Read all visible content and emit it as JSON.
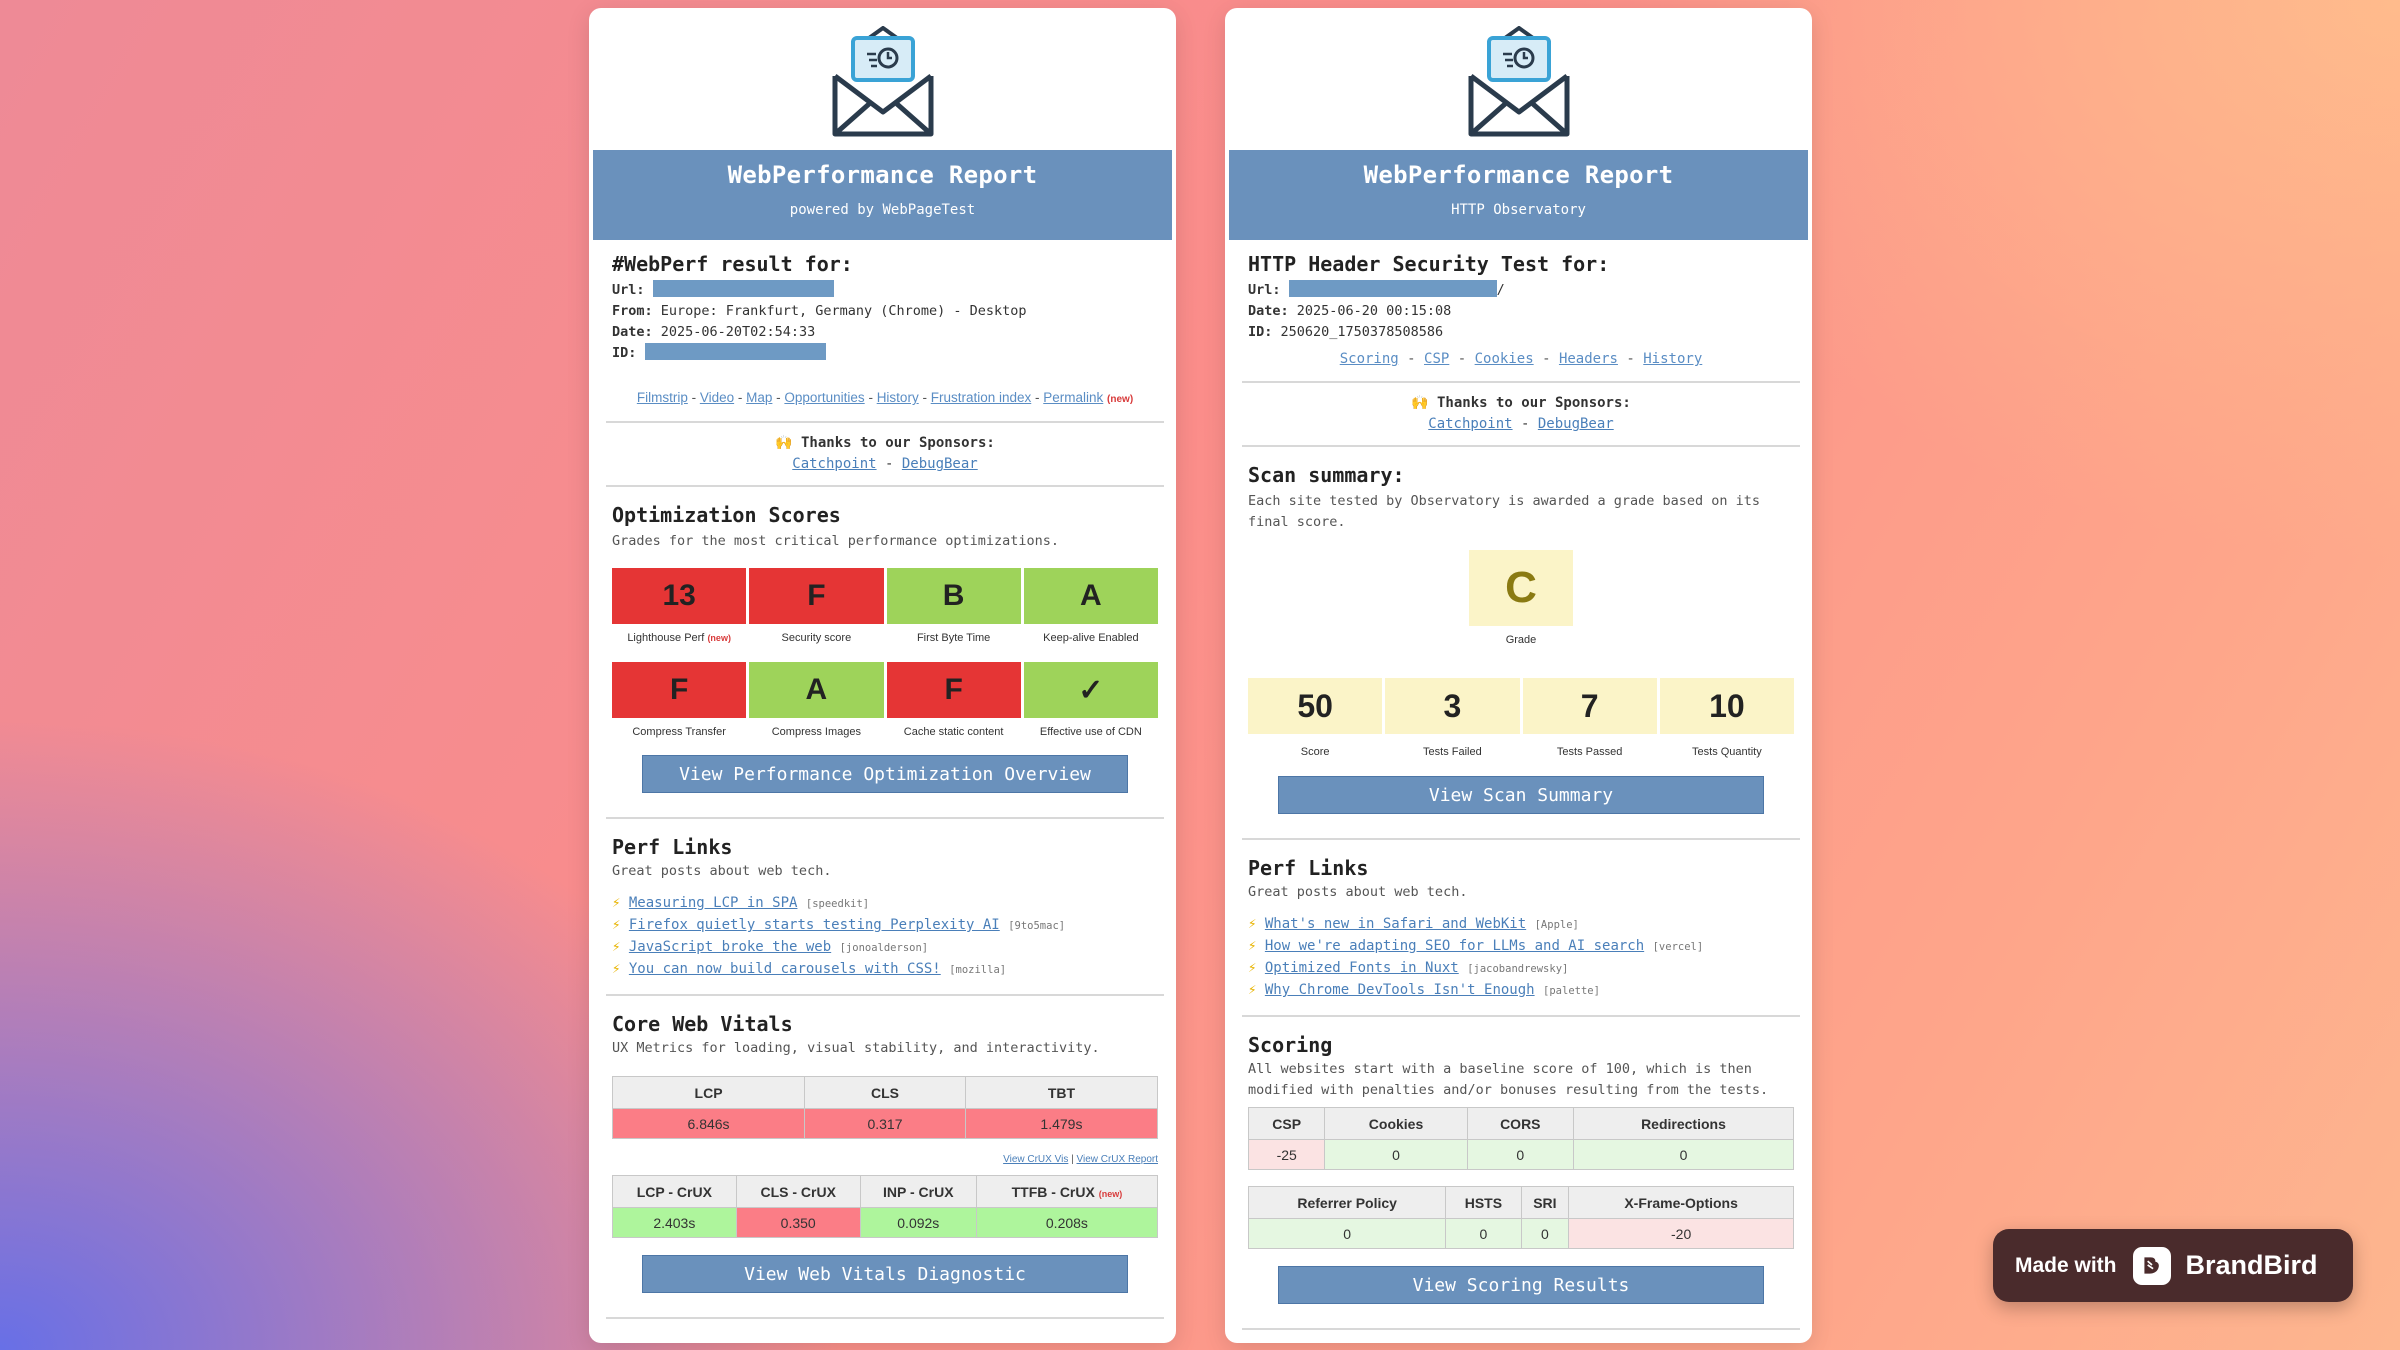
{
  "left": {
    "banner": {
      "title": "WebPerformance Report",
      "subtitle": "powered by WebPageTest"
    },
    "result": {
      "heading": "#WebPerf result for:",
      "url_label": "Url:",
      "from_label": "From:",
      "from_value": "Europe: Frankfurt, Germany (Chrome) - Desktop",
      "date_label": "Date:",
      "date_value": "2025-06-20T02:54:33",
      "id_label": "ID:"
    },
    "nav": {
      "links": [
        "Filmstrip",
        "Video",
        "Map",
        "Opportunities",
        "History",
        "Frustration index",
        "Permalink"
      ],
      "new_tag": "(new)"
    },
    "sponsors": {
      "label": "🙌 Thanks to our Sponsors:",
      "a": "Catchpoint",
      "b": "DebugBear"
    },
    "optimization": {
      "title": "Optimization Scores",
      "desc": "Grades for the most critical performance optimizations.",
      "row1": [
        {
          "value": "13",
          "label": "Lighthouse Perf",
          "color": "#e53535"
        },
        {
          "value": "F",
          "label": "Security score",
          "color": "#e53535"
        },
        {
          "value": "B",
          "label": "First Byte Time",
          "color": "#9ed35a"
        },
        {
          "value": "A",
          "label": "Keep-alive Enabled",
          "color": "#9ed35a"
        }
      ],
      "row1_new": "(new)",
      "row2": [
        {
          "value": "F",
          "label": "Compress Transfer",
          "color": "#e53535"
        },
        {
          "value": "A",
          "label": "Compress Images",
          "color": "#9ed35a"
        },
        {
          "value": "F",
          "label": "Cache static content",
          "color": "#e53535"
        },
        {
          "value": "✓",
          "label": "Effective use of CDN",
          "color": "#9ed35a"
        }
      ],
      "button": "View Performance Optimization Overview"
    },
    "perf_links": {
      "title": "Perf Links",
      "desc": "Great posts about web tech.",
      "items": [
        {
          "text": "Measuring LCP in SPA",
          "src": "[speedkit]"
        },
        {
          "text": "Firefox quietly starts testing Perplexity AI",
          "src": "[9to5mac]"
        },
        {
          "text": "JavaScript broke the web",
          "src": "[jonoalderson]"
        },
        {
          "text": "You can now build carousels with CSS!",
          "src": "[mozilla]"
        }
      ]
    },
    "cwv": {
      "title": "Core Web Vitals",
      "desc": "UX Metrics for loading, visual stability, and interactivity.",
      "headers": [
        "LCP",
        "CLS",
        "TBT"
      ],
      "values": [
        "6.846s",
        "0.317",
        "1.479s"
      ],
      "crux_links": [
        "View CrUX Vis",
        "View CrUX Report"
      ],
      "crux_headers": [
        "LCP - CrUX",
        "CLS - CrUX",
        "INP - CrUX",
        "TTFB - CrUX"
      ],
      "crux_new": "(new)",
      "crux_values": [
        "2.403s",
        "0.350",
        "0.092s",
        "0.208s"
      ],
      "button": "View Web Vitals Diagnostic"
    }
  },
  "right": {
    "banner": {
      "title": "WebPerformance Report",
      "subtitle": "HTTP Observatory"
    },
    "result": {
      "heading": "HTTP Header Security Test for:",
      "url_label": "Url:",
      "url_tail": "/",
      "date_label": "Date:",
      "date_value": "2025-06-20 00:15:08",
      "id_label": "ID:",
      "id_value": "250620_1750378508586"
    },
    "nav": {
      "links": [
        "Scoring",
        "CSP",
        "Cookies",
        "Headers",
        "History"
      ]
    },
    "sponsors": {
      "label": "🙌 Thanks to our Sponsors:",
      "a": "Catchpoint",
      "b": "DebugBear"
    },
    "scan": {
      "title": "Scan summary:",
      "desc": "Each site tested by Observatory is awarded a grade based on its final score.",
      "grade": "C",
      "grade_label": "Grade",
      "stats": [
        {
          "value": "50",
          "label": "Score"
        },
        {
          "value": "3",
          "label": "Tests Failed"
        },
        {
          "value": "7",
          "label": "Tests Passed"
        },
        {
          "value": "10",
          "label": "Tests Quantity"
        }
      ],
      "button": "View Scan Summary"
    },
    "perf_links": {
      "title": "Perf Links",
      "desc": "Great posts about web tech.",
      "items": [
        {
          "text": "What's new in Safari and WebKit",
          "src": "[Apple]"
        },
        {
          "text": "How we're adapting SEO for LLMs and AI search",
          "src": "[vercel]"
        },
        {
          "text": "Optimized Fonts in Nuxt",
          "src": "[jacobandrewsky]"
        },
        {
          "text": "Why Chrome DevTools Isn't Enough",
          "src": "[palette]"
        }
      ]
    },
    "scoring": {
      "title": "Scoring",
      "desc": "All websites start with a baseline score of 100, which is then modified with penalties and/or bonuses resulting from the tests.",
      "headers1": [
        "CSP",
        "Cookies",
        "CORS",
        "Redirections"
      ],
      "values1": [
        "-25",
        "0",
        "0",
        "0"
      ],
      "headers2": [
        "Referrer Policy",
        "HSTS",
        "SRI",
        "X-Frame-Options"
      ],
      "values2": [
        "0",
        "0",
        "0",
        "-20"
      ],
      "button": "View Scoring Results"
    }
  },
  "badge": {
    "made_with": "Made with",
    "brand": "BrandBird"
  }
}
